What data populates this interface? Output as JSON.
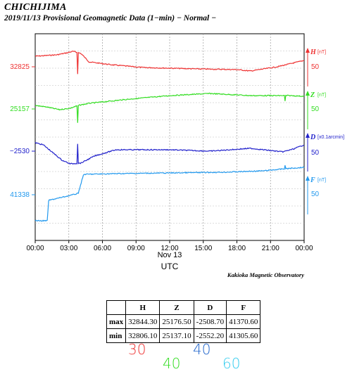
{
  "header": {
    "station": "CHICHIJIMA",
    "subtitle": "2019/11/13  Provisional Geomagnetic Data (1−min)  − Normal −"
  },
  "chart_data": {
    "type": "line",
    "x_ticks": [
      "00:00",
      "03:00",
      "06:00",
      "09:00",
      "12:00",
      "15:00",
      "18:00",
      "21:00",
      "00:00"
    ],
    "x_date_label": "Nov 13",
    "xlabel": "UTC",
    "credit": "Kakioka Magnetic Observatory",
    "grid": true,
    "series": [
      {
        "name": "H",
        "unit": "[nT]",
        "scale_label": "50",
        "base_label": "32825",
        "color": "#ee3333"
      },
      {
        "name": "Z",
        "unit": "[nT]",
        "scale_label": "50",
        "base_label": "25157",
        "color": "#33dd22"
      },
      {
        "name": "D",
        "unit": "[x0.1arcmin]",
        "scale_label": "50",
        "base_label": "−2530",
        "color": "#2222cc"
      },
      {
        "name": "F",
        "unit": "[nT]",
        "scale_label": "50",
        "base_label": "41338",
        "color": "#2299ee"
      }
    ]
  },
  "stats_table": {
    "headers": [
      "",
      "H",
      "Z",
      "D",
      "F"
    ],
    "rows": [
      [
        "max",
        "32844.30",
        "25176.50",
        "-2508.70",
        "41370.60"
      ],
      [
        "min",
        "32806.10",
        "25137.10",
        "-2552.20",
        "41305.60"
      ]
    ]
  },
  "scale_legend": [
    {
      "value": "30",
      "color": "#ee3333"
    },
    {
      "value": "40",
      "color": "#33dd22"
    },
    {
      "value": "40",
      "color": "#2266cc"
    },
    {
      "value": "60",
      "color": "#33ccee"
    }
  ]
}
